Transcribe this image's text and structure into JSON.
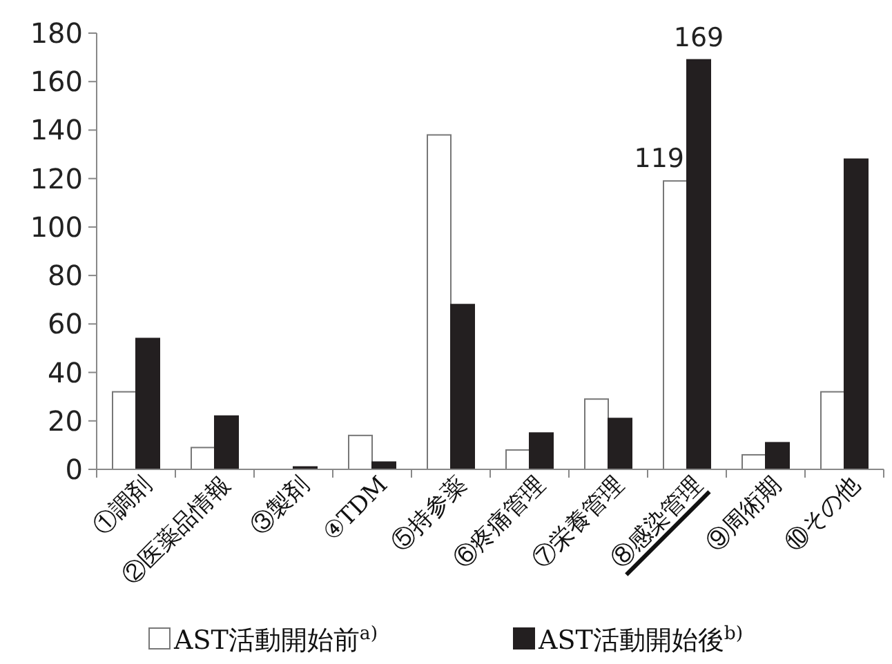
{
  "chart_data": {
    "type": "bar",
    "categories": [
      "①調剤",
      "②医薬品情報",
      "③製剤",
      "④TDM",
      "⑤持参薬",
      "⑥疼痛管理",
      "⑦栄養管理",
      "⑧感染管理",
      "⑨周術期",
      "⑩その他"
    ],
    "series": [
      {
        "name": "AST活動開始前$^{a)}$",
        "color": "#ffffff",
        "values": [
          32,
          9,
          0,
          14,
          138,
          8,
          29,
          119,
          6,
          32
        ],
        "value_labels": [
          null,
          null,
          null,
          null,
          null,
          null,
          null,
          "119",
          null,
          null
        ]
      },
      {
        "name": "AST活動開始後$^{b)}$",
        "color": "#231f20",
        "values": [
          54,
          22,
          1,
          3,
          68,
          15,
          21,
          169,
          11,
          128
        ],
        "value_labels": [
          null,
          null,
          null,
          null,
          null,
          null,
          null,
          "169",
          null,
          null
        ]
      }
    ],
    "ylim": [
      0,
      180
    ],
    "yticks": [
      0,
      20,
      40,
      60,
      80,
      100,
      120,
      140,
      160,
      180
    ],
    "grid": false,
    "legend": "bottom"
  }
}
